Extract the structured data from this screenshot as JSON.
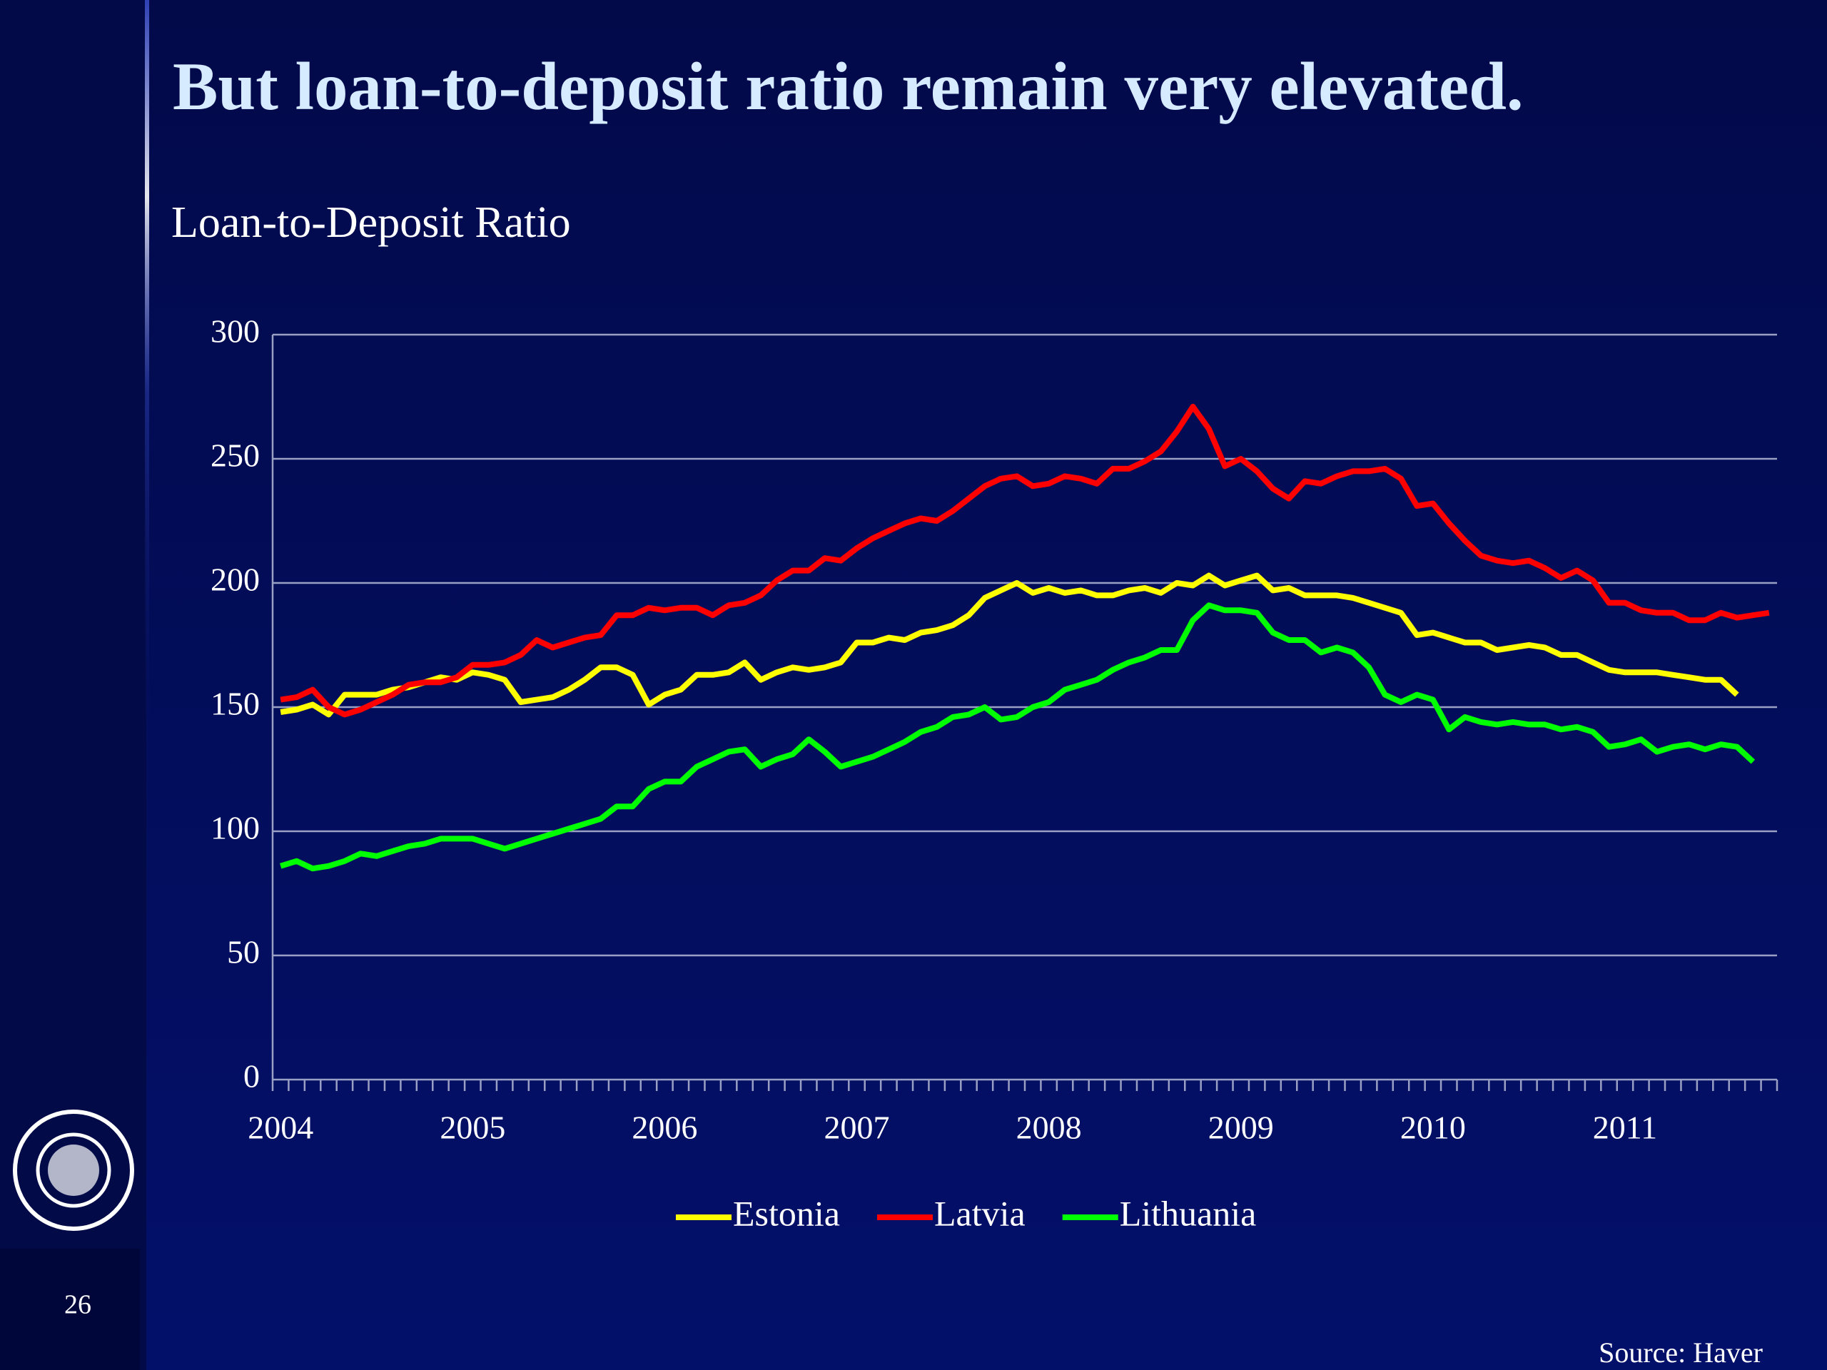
{
  "title": "But loan-to-deposit ratio remain very elevated.",
  "page_number": "26",
  "source": "Source: Haver",
  "chart_data": {
    "type": "line",
    "title": "Loan-to-Deposit Ratio",
    "categories": [
      "2004",
      null,
      null,
      null,
      null,
      null,
      null,
      null,
      null,
      null,
      null,
      null,
      "2005",
      null,
      null,
      null,
      null,
      null,
      null,
      null,
      null,
      null,
      null,
      null,
      "2006",
      null,
      null,
      null,
      null,
      null,
      null,
      null,
      null,
      null,
      null,
      null,
      "2007",
      null,
      null,
      null,
      null,
      null,
      null,
      null,
      null,
      null,
      null,
      null,
      "2008",
      null,
      null,
      null,
      null,
      null,
      null,
      null,
      null,
      null,
      null,
      null,
      "2009",
      null,
      null,
      null,
      null,
      null,
      null,
      null,
      null,
      null,
      null,
      null,
      "2010",
      null,
      null,
      null,
      null,
      null,
      null,
      null,
      null,
      null,
      null,
      null,
      "2011",
      null,
      null,
      null,
      null,
      null,
      null,
      null,
      null,
      null
    ],
    "series": [
      {
        "name": "Estonia",
        "color": "#ffff00",
        "values": [
          148,
          149,
          151,
          147,
          155,
          155,
          155,
          157,
          158,
          160,
          162,
          161,
          164,
          163,
          161,
          152,
          153,
          154,
          157,
          161,
          166,
          166,
          163,
          151,
          155,
          157,
          163,
          163,
          164,
          168,
          161,
          164,
          166,
          165,
          166,
          168,
          176,
          176,
          178,
          177,
          180,
          181,
          183,
          187,
          194,
          197,
          200,
          196,
          198,
          196,
          197,
          195,
          195,
          197,
          198,
          196,
          200,
          199,
          203,
          199,
          201,
          203,
          197,
          198,
          195,
          195,
          195,
          194,
          192,
          190,
          188,
          179,
          180,
          178,
          176,
          176,
          173,
          174,
          175,
          174,
          171,
          171,
          168,
          165,
          164,
          164,
          164,
          163,
          162,
          161,
          161,
          155,
          null,
          null
        ]
      },
      {
        "name": "Latvia",
        "color": "#ff0000",
        "values": [
          153,
          154,
          157,
          150,
          147,
          149,
          152,
          155,
          159,
          160,
          160,
          162,
          167,
          167,
          168,
          171,
          177,
          174,
          176,
          178,
          179,
          187,
          187,
          190,
          189,
          190,
          190,
          187,
          191,
          192,
          195,
          201,
          205,
          205,
          210,
          209,
          214,
          218,
          221,
          224,
          226,
          225,
          229,
          234,
          239,
          242,
          243,
          239,
          240,
          243,
          242,
          240,
          246,
          246,
          249,
          253,
          261,
          271,
          262,
          247,
          250,
          245,
          238,
          234,
          241,
          240,
          243,
          245,
          245,
          246,
          242,
          231,
          232,
          224,
          217,
          211,
          209,
          208,
          209,
          206,
          202,
          205,
          201,
          192,
          192,
          189,
          188,
          188,
          185,
          185,
          188,
          186,
          187,
          188
        ]
      },
      {
        "name": "Lithuania",
        "color": "#00ff00",
        "values": [
          86,
          88,
          85,
          86,
          88,
          91,
          90,
          92,
          94,
          95,
          97,
          97,
          97,
          95,
          93,
          95,
          97,
          99,
          101,
          103,
          105,
          110,
          110,
          117,
          120,
          120,
          126,
          129,
          132,
          133,
          126,
          129,
          131,
          137,
          132,
          126,
          128,
          130,
          133,
          136,
          140,
          142,
          146,
          147,
          150,
          145,
          146,
          150,
          152,
          157,
          159,
          161,
          165,
          168,
          170,
          173,
          173,
          185,
          191,
          189,
          189,
          188,
          180,
          177,
          177,
          172,
          174,
          172,
          166,
          155,
          152,
          155,
          153,
          141,
          146,
          144,
          143,
          144,
          143,
          143,
          141,
          142,
          140,
          134,
          135,
          137,
          132,
          134,
          135,
          133,
          135,
          134,
          128,
          null
        ]
      }
    ],
    "ylim": [
      0,
      300
    ],
    "yticks": [
      0,
      50,
      100,
      150,
      200,
      250,
      300
    ],
    "grid": true,
    "legend": "bottom"
  }
}
